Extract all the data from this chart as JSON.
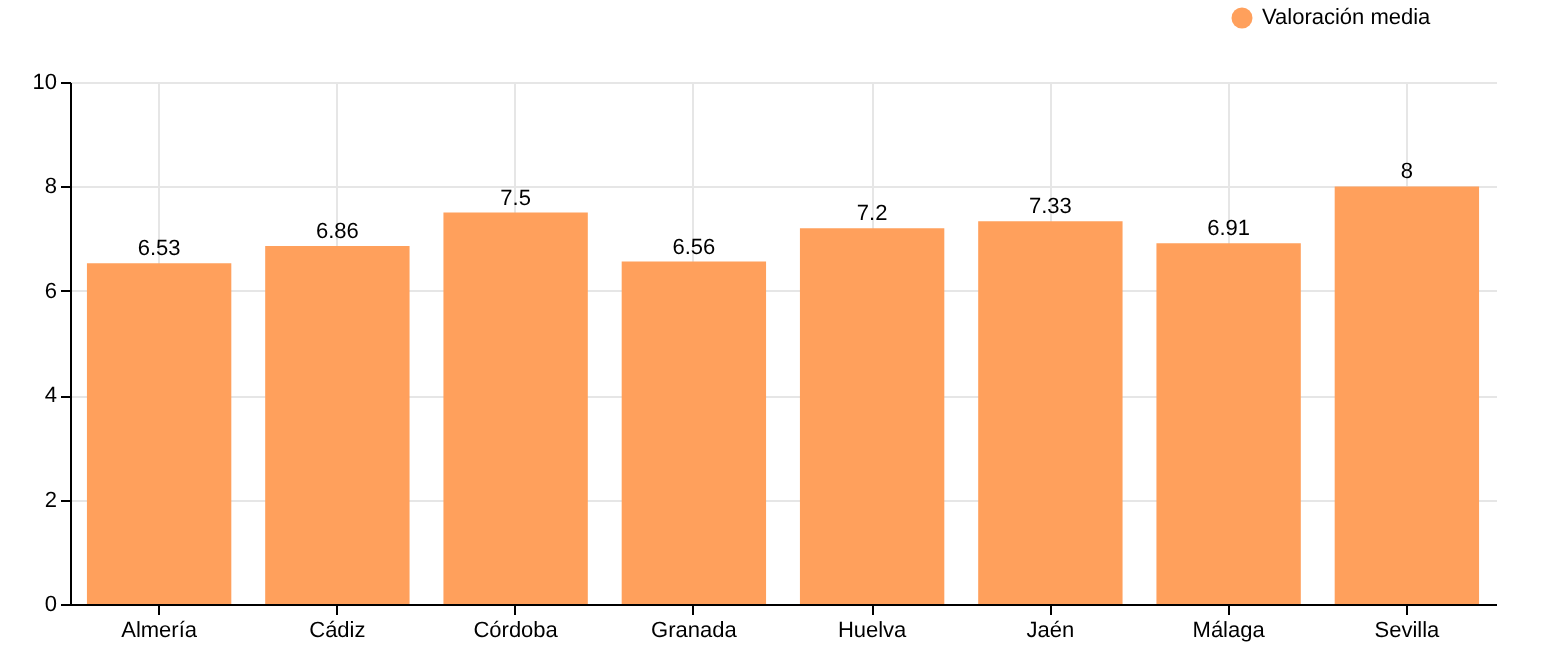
{
  "chart_data": {
    "type": "bar",
    "categories": [
      "Almería",
      "Cádiz",
      "Córdoba",
      "Granada",
      "Huelva",
      "Jaén",
      "Málaga",
      "Sevilla"
    ],
    "series": [
      {
        "name": "Valoración media",
        "color": "#ffa05c",
        "values": [
          6.53,
          6.86,
          7.5,
          6.56,
          7.2,
          7.33,
          6.91,
          8
        ]
      }
    ],
    "ylim": [
      0,
      10
    ],
    "yticks": [
      0,
      2,
      4,
      6,
      8,
      10
    ],
    "grid": true,
    "legend": "top right",
    "data_labels": true
  }
}
